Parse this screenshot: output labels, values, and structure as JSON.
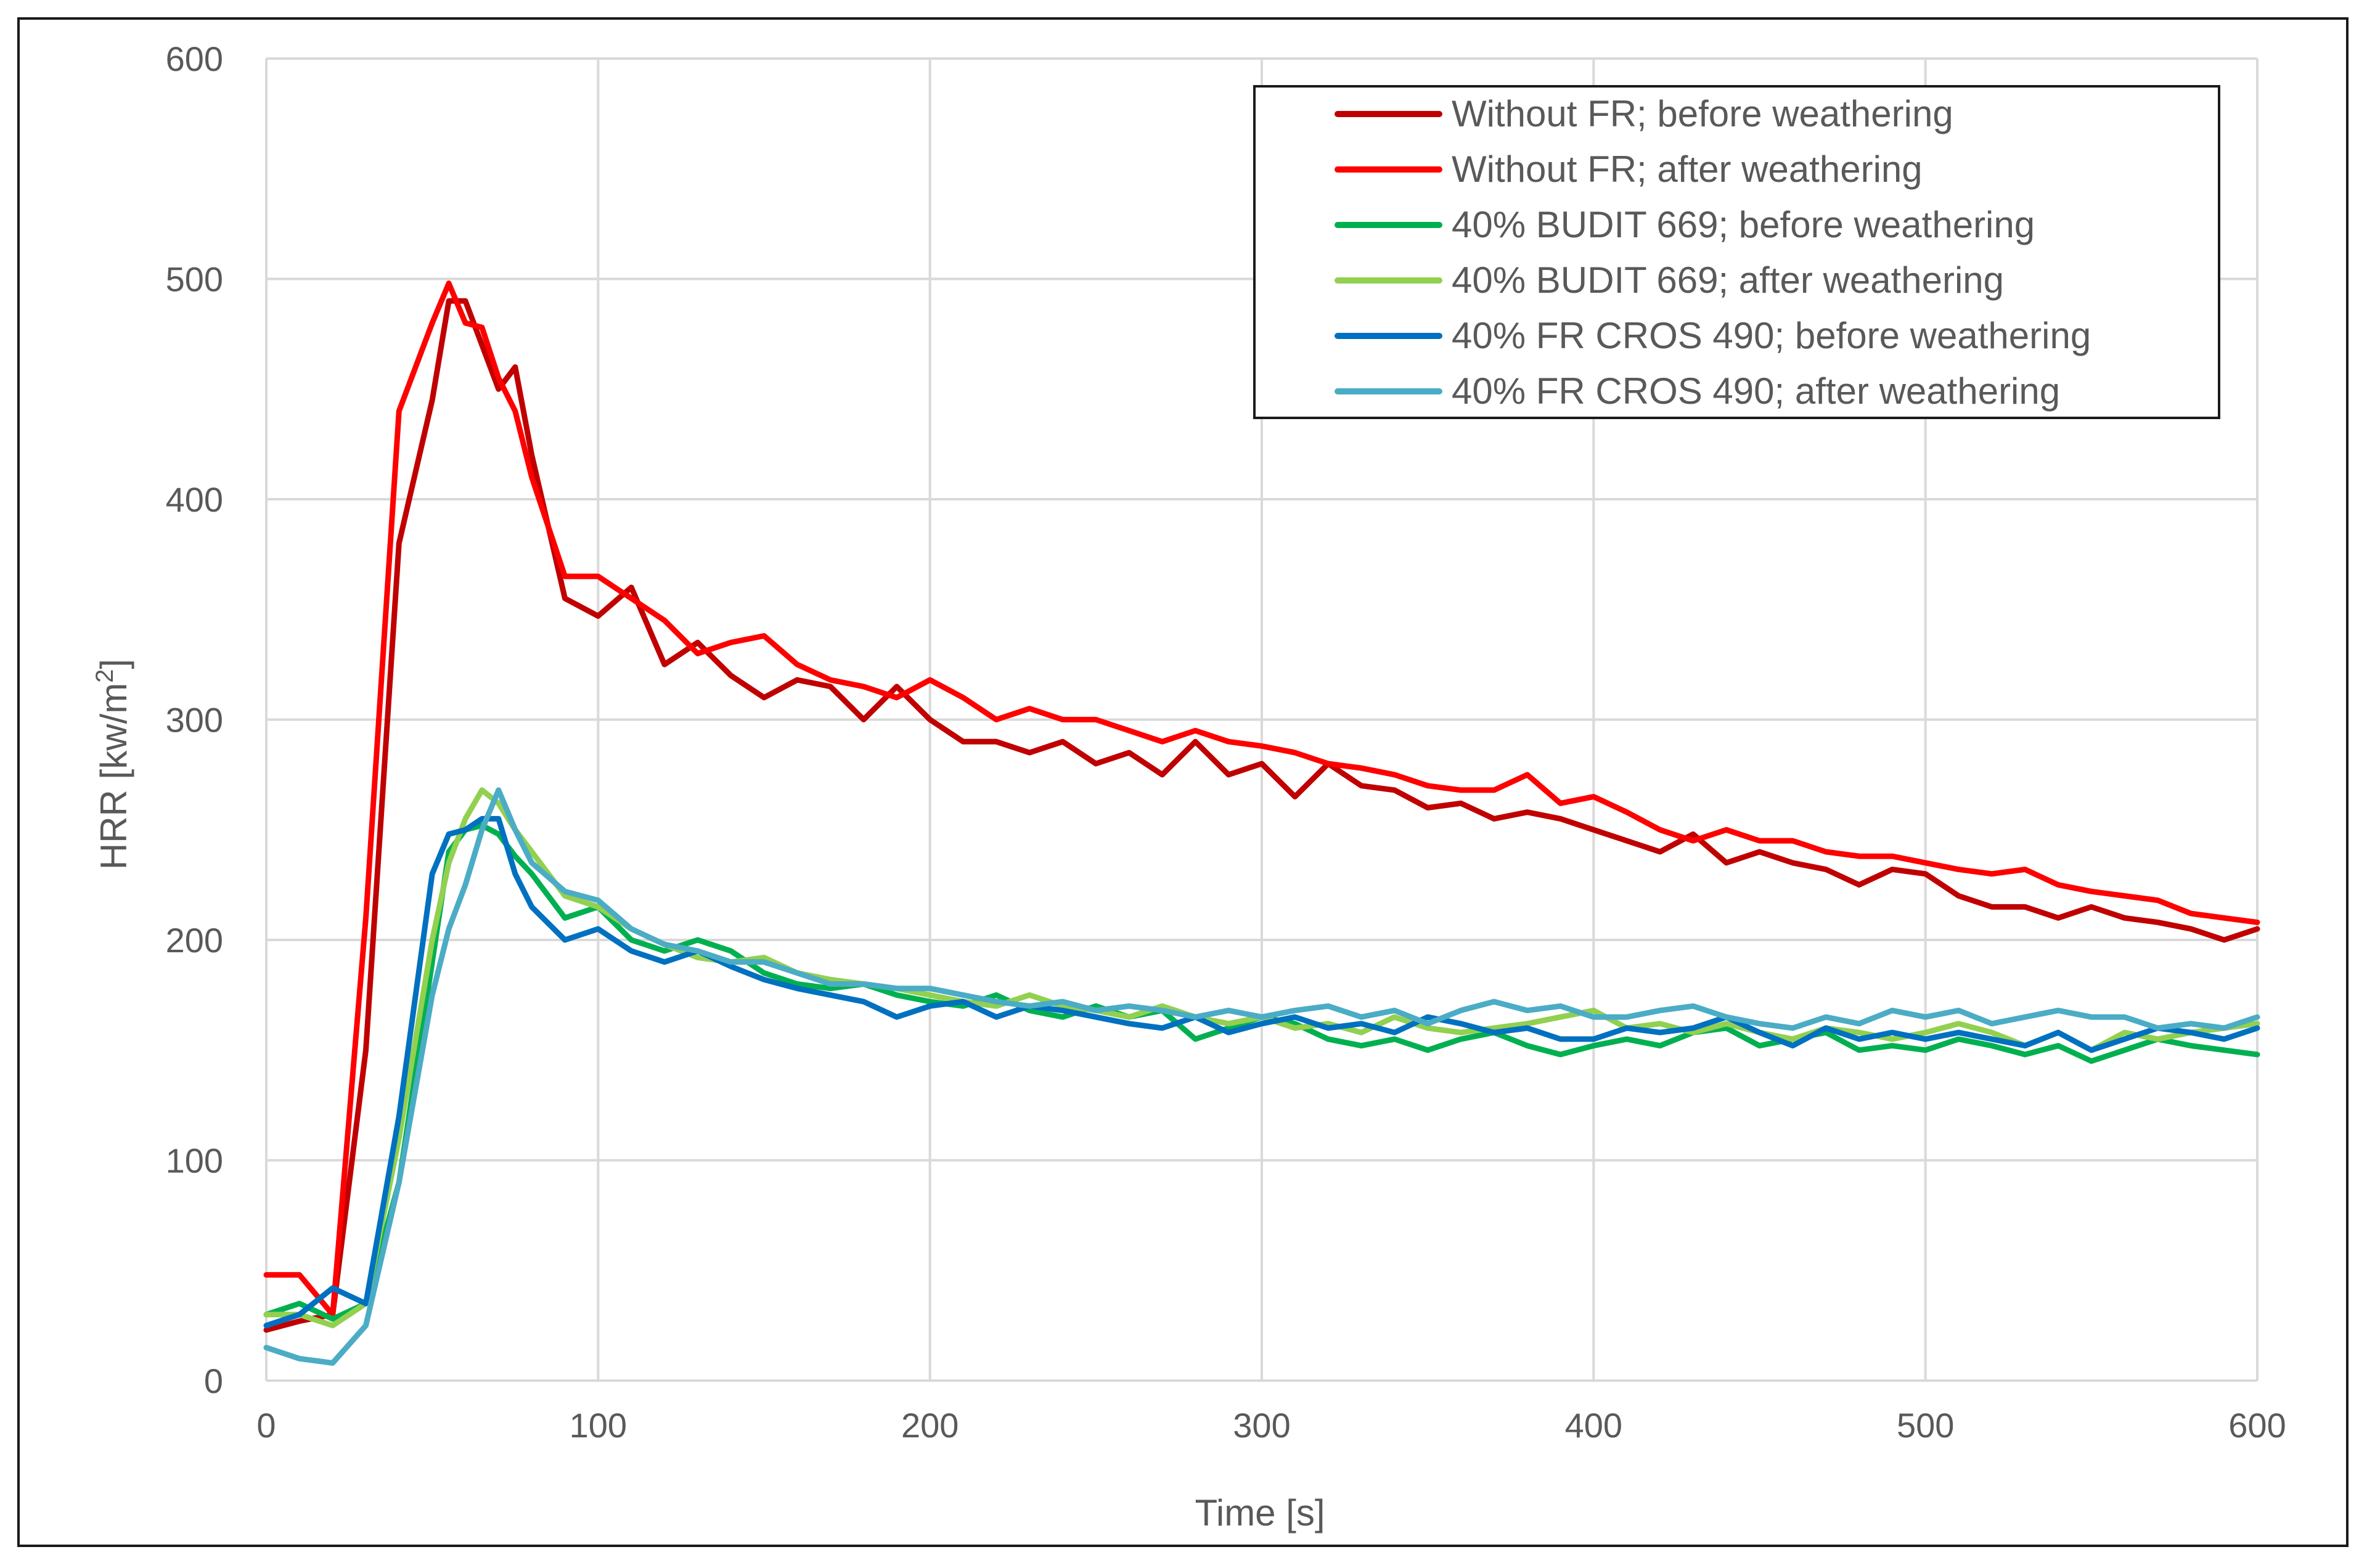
{
  "chart_data": {
    "type": "line",
    "title": "",
    "xlabel": "Time [s]",
    "ylabel": "HRR [kw/m",
    "ylabel_sup": "2",
    "ylabel_end": "]",
    "xlim": [
      0,
      600
    ],
    "ylim": [
      0,
      600
    ],
    "xticks": [
      0,
      100,
      200,
      300,
      400,
      500,
      600
    ],
    "yticks": [
      0,
      100,
      200,
      300,
      400,
      500,
      600
    ],
    "grid": true,
    "legend_position": "top-right",
    "x": [
      0,
      10,
      20,
      30,
      40,
      50,
      55,
      60,
      65,
      70,
      75,
      80,
      90,
      100,
      110,
      120,
      130,
      140,
      150,
      160,
      170,
      180,
      190,
      200,
      210,
      220,
      230,
      240,
      250,
      260,
      270,
      280,
      290,
      300,
      310,
      320,
      330,
      340,
      350,
      360,
      370,
      380,
      390,
      400,
      410,
      420,
      430,
      440,
      450,
      460,
      470,
      480,
      490,
      500,
      510,
      520,
      530,
      540,
      550,
      560,
      570,
      580,
      590,
      600
    ],
    "series": [
      {
        "name": "Without FR; before weathering",
        "color": "#c00000",
        "values": [
          23,
          27,
          30,
          150,
          380,
          445,
          490,
          490,
          470,
          450,
          460,
          420,
          355,
          347,
          360,
          325,
          335,
          320,
          310,
          318,
          315,
          300,
          315,
          300,
          290,
          290,
          285,
          290,
          280,
          285,
          275,
          290,
          275,
          280,
          265,
          280,
          270,
          268,
          260,
          262,
          255,
          258,
          255,
          250,
          245,
          240,
          248,
          235,
          240,
          235,
          232,
          225,
          232,
          230,
          220,
          215,
          215,
          210,
          215,
          210,
          208,
          205,
          200,
          205
        ]
      },
      {
        "name": "Without FR; after weathering",
        "color": "#ff0000",
        "values": [
          48,
          48,
          30,
          210,
          440,
          480,
          498,
          480,
          478,
          455,
          440,
          410,
          365,
          365,
          355,
          345,
          330,
          335,
          338,
          325,
          318,
          315,
          310,
          318,
          310,
          300,
          305,
          300,
          300,
          295,
          290,
          295,
          290,
          288,
          285,
          280,
          278,
          275,
          270,
          268,
          268,
          275,
          262,
          265,
          258,
          250,
          245,
          250,
          245,
          245,
          240,
          238,
          238,
          235,
          232,
          230,
          232,
          225,
          222,
          220,
          218,
          212,
          210,
          208
        ]
      },
      {
        "name": "40% BUDIT 669; before weathering",
        "color": "#00b050",
        "values": [
          30,
          35,
          28,
          35,
          90,
          190,
          240,
          250,
          252,
          248,
          238,
          230,
          210,
          215,
          200,
          195,
          200,
          195,
          185,
          180,
          178,
          180,
          175,
          172,
          170,
          175,
          168,
          165,
          170,
          165,
          168,
          155,
          160,
          165,
          162,
          155,
          152,
          155,
          150,
          155,
          158,
          152,
          148,
          152,
          155,
          152,
          158,
          160,
          152,
          155,
          158,
          150,
          152,
          150,
          155,
          152,
          148,
          152,
          145,
          150,
          155,
          152,
          150,
          148
        ]
      },
      {
        "name": "40% BUDIT 669; after weathering",
        "color": "#92d050",
        "values": [
          30,
          30,
          25,
          35,
          110,
          200,
          235,
          255,
          268,
          262,
          250,
          240,
          220,
          215,
          205,
          198,
          192,
          190,
          192,
          185,
          182,
          180,
          178,
          175,
          172,
          170,
          175,
          170,
          168,
          165,
          170,
          165,
          162,
          165,
          160,
          162,
          158,
          165,
          160,
          158,
          160,
          162,
          165,
          168,
          160,
          162,
          158,
          162,
          158,
          155,
          160,
          158,
          155,
          158,
          162,
          158,
          152,
          158,
          150,
          158,
          155,
          158,
          160,
          162
        ]
      },
      {
        "name": "40% FR CROS 490; before weathering",
        "color": "#0070c0",
        "values": [
          25,
          30,
          42,
          35,
          120,
          230,
          248,
          250,
          255,
          255,
          230,
          215,
          200,
          205,
          195,
          190,
          195,
          188,
          182,
          178,
          175,
          172,
          165,
          170,
          172,
          165,
          170,
          168,
          165,
          162,
          160,
          165,
          158,
          162,
          165,
          160,
          162,
          158,
          165,
          162,
          158,
          160,
          155,
          155,
          160,
          158,
          160,
          165,
          158,
          152,
          160,
          155,
          158,
          155,
          158,
          155,
          152,
          158,
          150,
          155,
          160,
          158,
          155,
          160
        ]
      },
      {
        "name": "40% FR CROS 490; after weathering",
        "color": "#4bacc6",
        "values": [
          15,
          10,
          8,
          25,
          90,
          175,
          205,
          225,
          250,
          268,
          250,
          235,
          222,
          218,
          205,
          198,
          195,
          190,
          190,
          185,
          180,
          180,
          178,
          178,
          175,
          172,
          170,
          172,
          168,
          170,
          168,
          165,
          168,
          165,
          168,
          170,
          165,
          168,
          162,
          168,
          172,
          168,
          170,
          165,
          165,
          168,
          170,
          165,
          162,
          160,
          165,
          162,
          168,
          165,
          168,
          162,
          165,
          168,
          165,
          165,
          160,
          162,
          160,
          165
        ]
      }
    ]
  }
}
